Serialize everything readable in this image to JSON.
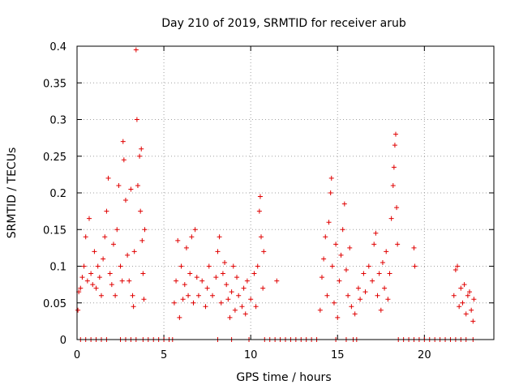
{
  "chart_data": {
    "type": "scatter",
    "title": "Day 210 of 2019, SRMTID for receiver arub",
    "xlabel": "GPS time / hours",
    "ylabel": "SRMTID / TECUs",
    "xlim": [
      0,
      24
    ],
    "ylim": [
      0,
      0.4
    ],
    "x_ticks": [
      0,
      5,
      10,
      15,
      20
    ],
    "x_tick_labels": [
      "0",
      "5",
      "10",
      "15",
      "20"
    ],
    "y_ticks": [
      0,
      0.05,
      0.1,
      0.15,
      0.2,
      0.25,
      0.3,
      0.35,
      0.4
    ],
    "y_tick_labels": [
      "0",
      "0.05",
      "0.1",
      "0.15",
      "0.2",
      "0.25",
      "0.3",
      "0.35",
      "0.4"
    ],
    "grid": true,
    "marker": "+",
    "color": "#e00000",
    "series": [
      {
        "name": "SRMTID",
        "points": [
          [
            0.05,
            0.04
          ],
          [
            0.1,
            0.065
          ],
          [
            0.2,
            0.07
          ],
          [
            0.3,
            0.085
          ],
          [
            0.4,
            0.1
          ],
          [
            0.5,
            0.14
          ],
          [
            0.6,
            0.08
          ],
          [
            0.7,
            0.165
          ],
          [
            0.8,
            0.09
          ],
          [
            0.9,
            0.075
          ],
          [
            1.0,
            0.12
          ],
          [
            1.1,
            0.07
          ],
          [
            1.2,
            0.1
          ],
          [
            1.3,
            0.085
          ],
          [
            1.4,
            0.06
          ],
          [
            1.5,
            0.11
          ],
          [
            1.6,
            0.14
          ],
          [
            1.7,
            0.175
          ],
          [
            1.8,
            0.22
          ],
          [
            1.9,
            0.09
          ],
          [
            2.0,
            0.075
          ],
          [
            2.1,
            0.13
          ],
          [
            2.2,
            0.06
          ],
          [
            2.3,
            0.15
          ],
          [
            2.4,
            0.21
          ],
          [
            2.5,
            0.1
          ],
          [
            2.6,
            0.08
          ],
          [
            2.65,
            0.27
          ],
          [
            2.7,
            0.245
          ],
          [
            2.8,
            0.19
          ],
          [
            2.9,
            0.115
          ],
          [
            3.0,
            0.08
          ],
          [
            3.1,
            0.205
          ],
          [
            3.2,
            0.06
          ],
          [
            3.25,
            0.045
          ],
          [
            3.3,
            0.12
          ],
          [
            3.4,
            0.395
          ],
          [
            3.45,
            0.3
          ],
          [
            3.5,
            0.21
          ],
          [
            3.6,
            0.25
          ],
          [
            3.65,
            0.175
          ],
          [
            3.7,
            0.26
          ],
          [
            3.75,
            0.135
          ],
          [
            3.8,
            0.09
          ],
          [
            3.85,
            0.055
          ],
          [
            3.9,
            0.15
          ],
          [
            5.6,
            0.05
          ],
          [
            5.7,
            0.08
          ],
          [
            5.8,
            0.135
          ],
          [
            5.9,
            0.03
          ],
          [
            6.0,
            0.1
          ],
          [
            6.1,
            0.055
          ],
          [
            6.2,
            0.075
          ],
          [
            6.3,
            0.125
          ],
          [
            6.4,
            0.06
          ],
          [
            6.5,
            0.09
          ],
          [
            6.6,
            0.14
          ],
          [
            6.7,
            0.05
          ],
          [
            6.8,
            0.15
          ],
          [
            6.9,
            0.085
          ],
          [
            7.0,
            0.06
          ],
          [
            7.2,
            0.08
          ],
          [
            7.4,
            0.045
          ],
          [
            7.5,
            0.07
          ],
          [
            7.6,
            0.1
          ],
          [
            7.8,
            0.06
          ],
          [
            8.0,
            0.085
          ],
          [
            8.1,
            0.12
          ],
          [
            8.2,
            0.14
          ],
          [
            8.3,
            0.05
          ],
          [
            8.4,
            0.09
          ],
          [
            8.5,
            0.105
          ],
          [
            8.6,
            0.075
          ],
          [
            8.7,
            0.055
          ],
          [
            8.8,
            0.03
          ],
          [
            8.9,
            0.065
          ],
          [
            9.0,
            0.1
          ],
          [
            9.1,
            0.04
          ],
          [
            9.2,
            0.085
          ],
          [
            9.3,
            0.06
          ],
          [
            9.5,
            0.045
          ],
          [
            9.6,
            0.07
          ],
          [
            9.7,
            0.035
          ],
          [
            9.8,
            0.08
          ],
          [
            10.0,
            0.055
          ],
          [
            10.2,
            0.09
          ],
          [
            10.3,
            0.045
          ],
          [
            10.4,
            0.1
          ],
          [
            10.5,
            0.175
          ],
          [
            10.55,
            0.195
          ],
          [
            10.6,
            0.14
          ],
          [
            10.7,
            0.07
          ],
          [
            10.75,
            0.12
          ],
          [
            11.5,
            0.08
          ],
          [
            14.0,
            0.04
          ],
          [
            14.1,
            0.085
          ],
          [
            14.2,
            0.11
          ],
          [
            14.3,
            0.14
          ],
          [
            14.4,
            0.06
          ],
          [
            14.5,
            0.16
          ],
          [
            14.6,
            0.2
          ],
          [
            14.65,
            0.22
          ],
          [
            14.7,
            0.1
          ],
          [
            14.8,
            0.05
          ],
          [
            14.9,
            0.13
          ],
          [
            15.0,
            0.03
          ],
          [
            15.1,
            0.08
          ],
          [
            15.2,
            0.115
          ],
          [
            15.3,
            0.15
          ],
          [
            15.4,
            0.185
          ],
          [
            15.5,
            0.095
          ],
          [
            15.6,
            0.06
          ],
          [
            15.7,
            0.125
          ],
          [
            15.8,
            0.045
          ],
          [
            16.0,
            0.035
          ],
          [
            16.2,
            0.07
          ],
          [
            16.3,
            0.055
          ],
          [
            16.5,
            0.09
          ],
          [
            16.6,
            0.065
          ],
          [
            16.8,
            0.1
          ],
          [
            17.0,
            0.08
          ],
          [
            17.1,
            0.13
          ],
          [
            17.2,
            0.145
          ],
          [
            17.3,
            0.06
          ],
          [
            17.4,
            0.09
          ],
          [
            17.5,
            0.04
          ],
          [
            17.6,
            0.105
          ],
          [
            17.7,
            0.07
          ],
          [
            17.8,
            0.12
          ],
          [
            17.9,
            0.055
          ],
          [
            18.0,
            0.09
          ],
          [
            18.1,
            0.165
          ],
          [
            18.2,
            0.21
          ],
          [
            18.25,
            0.235
          ],
          [
            18.3,
            0.265
          ],
          [
            18.35,
            0.28
          ],
          [
            18.4,
            0.18
          ],
          [
            18.45,
            0.13
          ],
          [
            19.4,
            0.125
          ],
          [
            19.45,
            0.1
          ],
          [
            21.7,
            0.06
          ],
          [
            21.8,
            0.095
          ],
          [
            21.9,
            0.1
          ],
          [
            22.0,
            0.045
          ],
          [
            22.1,
            0.07
          ],
          [
            22.2,
            0.05
          ],
          [
            22.3,
            0.075
          ],
          [
            22.4,
            0.035
          ],
          [
            22.5,
            0.06
          ],
          [
            22.6,
            0.065
          ],
          [
            22.7,
            0.04
          ],
          [
            22.8,
            0.025
          ],
          [
            22.85,
            0.055
          ]
        ]
      },
      {
        "name": "SRMTID zero values",
        "points": [
          [
            0.2,
            0
          ],
          [
            0.5,
            0
          ],
          [
            0.8,
            0
          ],
          [
            1.1,
            0
          ],
          [
            1.4,
            0
          ],
          [
            1.7,
            0
          ],
          [
            2.5,
            0
          ],
          [
            2.8,
            0
          ],
          [
            3.1,
            0
          ],
          [
            3.4,
            0
          ],
          [
            3.8,
            0
          ],
          [
            4.1,
            0
          ],
          [
            4.4,
            0
          ],
          [
            4.7,
            0
          ],
          [
            5.0,
            0
          ],
          [
            5.3,
            0
          ],
          [
            5.5,
            0
          ],
          [
            8.1,
            0
          ],
          [
            8.9,
            0
          ],
          [
            9.9,
            0
          ],
          [
            10.8,
            0
          ],
          [
            11.1,
            0
          ],
          [
            11.4,
            0
          ],
          [
            11.7,
            0
          ],
          [
            12.0,
            0
          ],
          [
            12.3,
            0
          ],
          [
            12.6,
            0
          ],
          [
            12.9,
            0
          ],
          [
            13.2,
            0
          ],
          [
            13.5,
            0
          ],
          [
            13.8,
            0
          ],
          [
            14.9,
            0
          ],
          [
            15.5,
            0
          ],
          [
            15.9,
            0
          ],
          [
            16.1,
            0
          ],
          [
            18.5,
            0
          ],
          [
            18.8,
            0
          ],
          [
            19.1,
            0
          ],
          [
            19.4,
            0
          ],
          [
            19.7,
            0
          ],
          [
            20.0,
            0
          ],
          [
            20.3,
            0
          ],
          [
            20.6,
            0
          ],
          [
            20.9,
            0
          ],
          [
            21.2,
            0
          ],
          [
            21.5,
            0
          ],
          [
            21.8,
            0
          ],
          [
            22.1,
            0
          ],
          [
            22.4,
            0
          ],
          [
            22.8,
            0
          ]
        ]
      }
    ]
  }
}
